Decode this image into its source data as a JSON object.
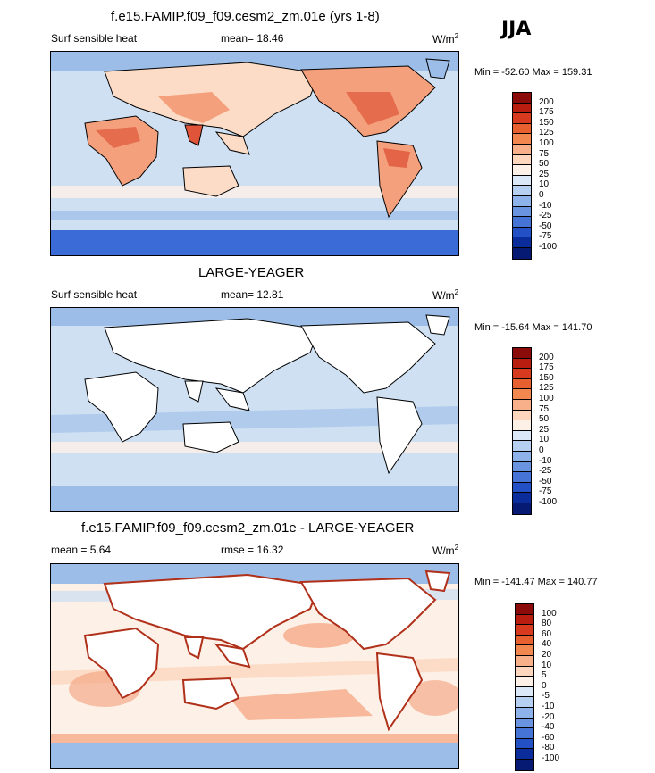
{
  "season": "JJA",
  "colors": {
    "land_white": "#ffffff",
    "ocean_light": "#cfe0f3",
    "ocean_mid": "#9bbde8",
    "ocean_deep": "#3a6bd6",
    "warm_light": "#fcdcc7",
    "warm_mid": "#f4a07c",
    "warm_strong": "#e0553a"
  },
  "panels": [
    {
      "title": "f.e15.FAMIP.f09_f09.cesm2_zm.01e (yrs 1-8)",
      "left_label": "Surf sensible heat",
      "stat_label": "mean=  18.46",
      "units": "W/m",
      "units_sup": "2",
      "minmax": "Min = -52.60 Max = 159.31",
      "colorbar": {
        "labels": [
          "200",
          "175",
          "150",
          "125",
          "100",
          "75",
          "50",
          "25",
          "10",
          "0",
          "-10",
          "-25",
          "-50",
          "-75",
          "-100"
        ],
        "colors": [
          "#8b0a0a",
          "#b81d10",
          "#d73a1e",
          "#e8602f",
          "#f2884f",
          "#f8b08a",
          "#fdd6bd",
          "#fdf0e6",
          "#dbe8f8",
          "#b6d0f1",
          "#8eb2ea",
          "#6a93e0",
          "#4573d6",
          "#2350c4",
          "#0b2d9c",
          "#071a73"
        ]
      }
    },
    {
      "title": "LARGE-YEAGER",
      "left_label": "Surf sensible heat",
      "stat_label": "mean=  12.81",
      "units": "W/m",
      "units_sup": "2",
      "minmax": "Min = -15.64 Max = 141.70",
      "colorbar": {
        "labels": [
          "200",
          "175",
          "150",
          "125",
          "100",
          "75",
          "50",
          "25",
          "10",
          "0",
          "-10",
          "-25",
          "-50",
          "-75",
          "-100"
        ],
        "colors": [
          "#8b0a0a",
          "#b81d10",
          "#d73a1e",
          "#e8602f",
          "#f2884f",
          "#f8b08a",
          "#fdd6bd",
          "#fdf0e6",
          "#dbe8f8",
          "#b6d0f1",
          "#8eb2ea",
          "#6a93e0",
          "#4573d6",
          "#2350c4",
          "#0b2d9c",
          "#071a73"
        ]
      }
    },
    {
      "title": "f.e15.FAMIP.f09_f09.cesm2_zm.01e - LARGE-YEAGER",
      "left_label": "mean =   5.64",
      "stat_label": "rmse =  16.32",
      "units": "W/m",
      "units_sup": "2",
      "minmax": "Min = -141.47 Max = 140.77",
      "colorbar": {
        "labels": [
          "100",
          "80",
          "60",
          "40",
          "20",
          "10",
          "5",
          "0",
          "-5",
          "-10",
          "-20",
          "-40",
          "-60",
          "-80",
          "-100"
        ],
        "colors": [
          "#8b0a0a",
          "#b81d10",
          "#d73a1e",
          "#e8602f",
          "#f2884f",
          "#f8b08a",
          "#fdd6bd",
          "#fdf0e6",
          "#dbe8f8",
          "#b6d0f1",
          "#8eb2ea",
          "#6a93e0",
          "#4573d6",
          "#2350c4",
          "#0b2d9c",
          "#071a73"
        ]
      }
    }
  ]
}
